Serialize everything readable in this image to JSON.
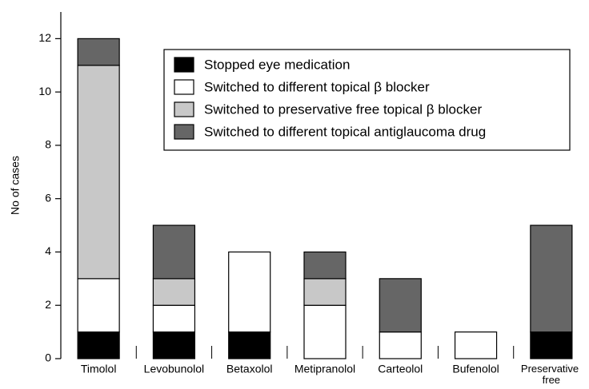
{
  "chart_data": {
    "type": "stacked_bar",
    "y_label": "No of cases",
    "categories": [
      "Timolol",
      "Levobunolol",
      "Betaxolol",
      "Metipranolol",
      "Carteolol",
      "Bufenolol",
      "Preservative free"
    ],
    "series": [
      {
        "name": "Stopped eye medication",
        "color": "#000000",
        "values": [
          1,
          1,
          1,
          0,
          0,
          0,
          1
        ]
      },
      {
        "name": "Switched to different topical β blocker",
        "color": "#ffffff",
        "values": [
          2,
          1,
          3,
          2,
          1,
          1,
          0
        ]
      },
      {
        "name": "Switched to preservative free topical β blocker",
        "color": "#c8c8c8",
        "values": [
          8,
          1,
          0,
          1,
          0,
          0,
          0
        ]
      },
      {
        "name": "Switched to different topical antiglaucoma drug",
        "color": "#666666",
        "values": [
          1,
          2,
          0,
          1,
          2,
          0,
          4
        ]
      }
    ],
    "ylim": [
      0,
      13
    ],
    "yticks": [
      0,
      2,
      4,
      6,
      8,
      10,
      12
    ],
    "legend": "top-right"
  }
}
